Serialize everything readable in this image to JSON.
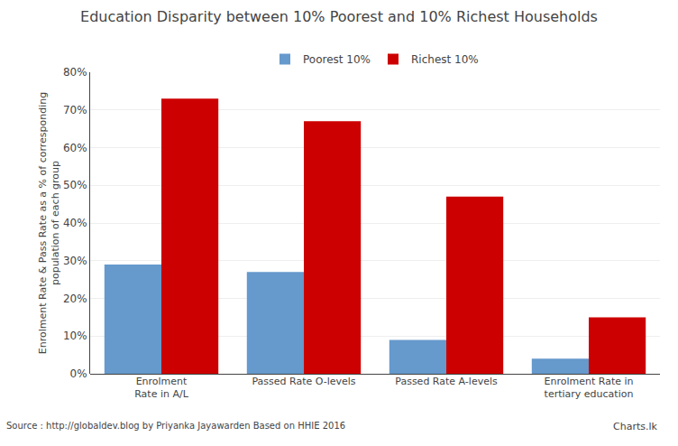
{
  "chart_data": {
    "type": "bar",
    "title": "Education Disparity between 10% Poorest and 10% Richest Households",
    "categories": [
      "Enrolment Rate in A/L",
      "Passed Rate O-levels",
      "Passed Rate A-levels",
      "Enrolment Rate in tertiary education"
    ],
    "series": [
      {
        "name": "Poorest 10%",
        "color": "#6699CC",
        "values": [
          29,
          27,
          9,
          4
        ]
      },
      {
        "name": "Richest 10%",
        "color": "#CC0000",
        "values": [
          73,
          67,
          47,
          15
        ]
      }
    ],
    "ylabel": "Enrolment Rate & Pass Rate as a % of corresponding\npopulation of each group",
    "ylim": [
      0,
      80
    ],
    "yticks": [
      {
        "value": 0,
        "label": "0%"
      },
      {
        "value": 10,
        "label": "10%"
      },
      {
        "value": 20,
        "label": "20%"
      },
      {
        "value": 30,
        "label": "30%"
      },
      {
        "value": 40,
        "label": "40%"
      },
      {
        "value": 50,
        "label": "50%"
      },
      {
        "value": 60,
        "label": "60%"
      },
      {
        "value": 70,
        "label": "70%"
      },
      {
        "value": 80,
        "label": "80%"
      }
    ],
    "grid": true,
    "legend": "upper center",
    "annotations": [
      "Source : http://globaldev.blog by Priyanka Jayawarden Based on HHIE 2016",
      "Charts.lk"
    ]
  }
}
